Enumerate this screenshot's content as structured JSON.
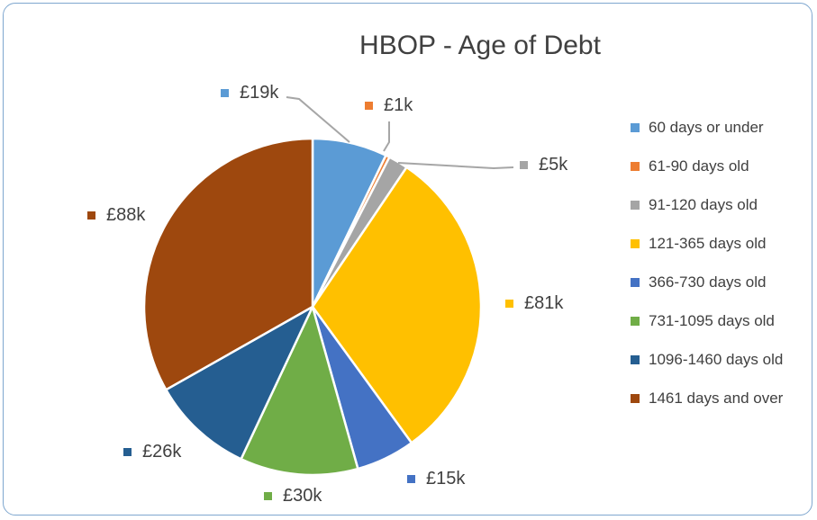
{
  "chart_data": {
    "type": "pie",
    "title": "HBOP - Age of Debt",
    "unit": "£k",
    "legend_position": "right",
    "slices": [
      {
        "category": "60 days or under",
        "value": 19,
        "label": "£19k",
        "color": "#5b9bd5"
      },
      {
        "category": "61-90 days old",
        "value": 1,
        "label": "£1k",
        "color": "#ed7d31"
      },
      {
        "category": "91-120 days old",
        "value": 5,
        "label": "£5k",
        "color": "#a5a5a5"
      },
      {
        "category": "121-365 days old",
        "value": 81,
        "label": "£81k",
        "color": "#ffc000"
      },
      {
        "category": "366-730 days old",
        "value": 15,
        "label": "£15k",
        "color": "#4472c4"
      },
      {
        "category": "731-1095 days old",
        "value": 30,
        "label": "£30k",
        "color": "#70ad47"
      },
      {
        "category": "1096-1460 days old",
        "value": 26,
        "label": "£26k",
        "color": "#255e91"
      },
      {
        "category": "1461 days and over",
        "value": 88,
        "label": "£88k",
        "color": "#9e480e"
      }
    ]
  }
}
